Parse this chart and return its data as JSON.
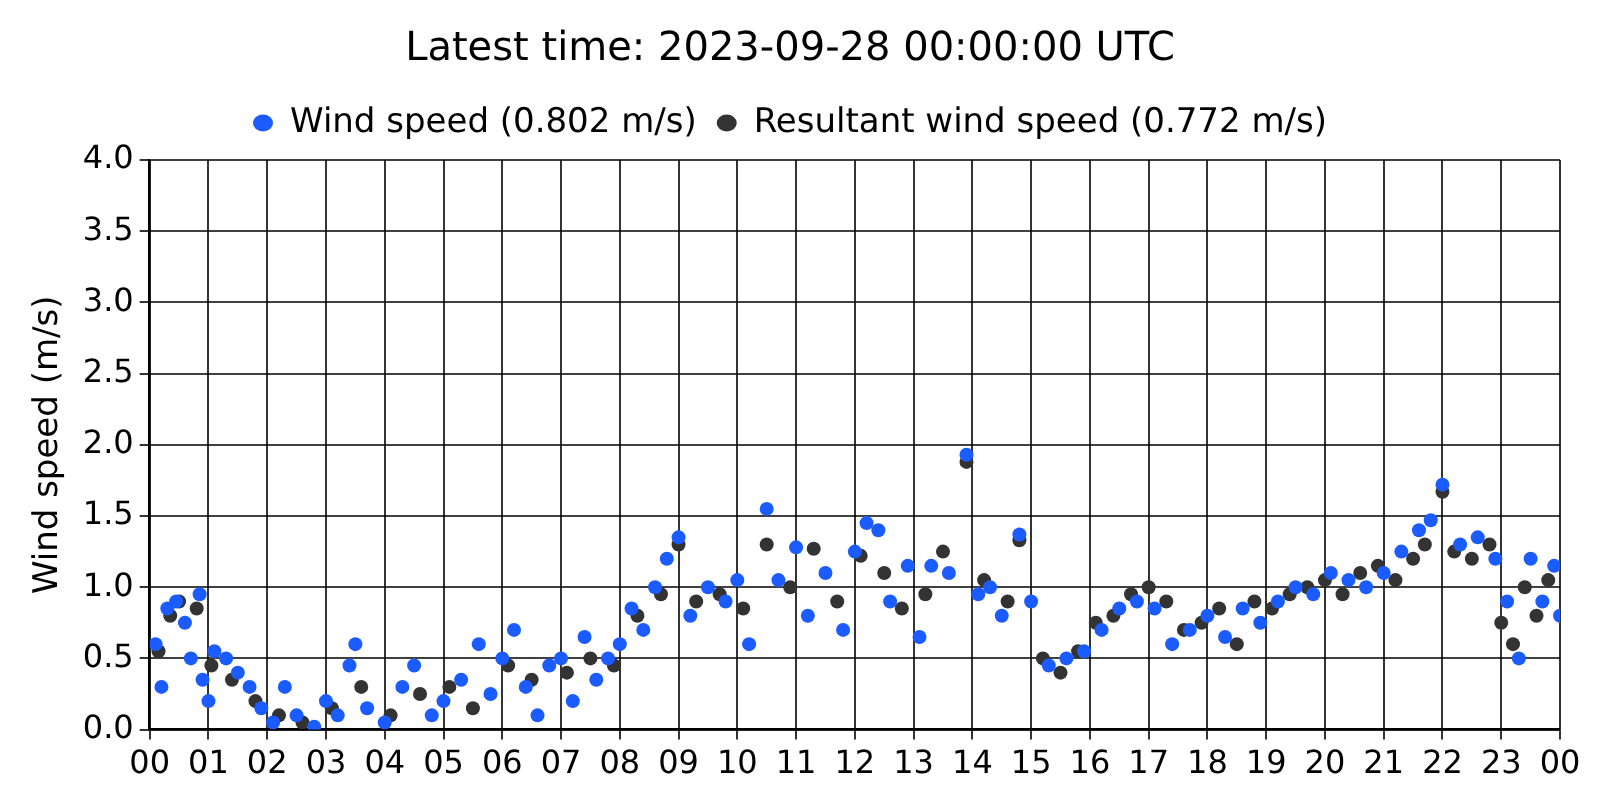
{
  "chart_data": {
    "type": "scatter",
    "title": "Latest time: 2023-09-28 00:00:00 UTC",
    "ylabel": "Wind speed (m/s)",
    "xlim": [
      0,
      24
    ],
    "xticks": [
      {
        "value": 0,
        "label": "00"
      },
      {
        "value": 1,
        "label": "01"
      },
      {
        "value": 2,
        "label": "02"
      },
      {
        "value": 3,
        "label": "03"
      },
      {
        "value": 4,
        "label": "04"
      },
      {
        "value": 5,
        "label": "05"
      },
      {
        "value": 6,
        "label": "06"
      },
      {
        "value": 7,
        "label": "07"
      },
      {
        "value": 8,
        "label": "08"
      },
      {
        "value": 9,
        "label": "09"
      },
      {
        "value": 10,
        "label": "10"
      },
      {
        "value": 11,
        "label": "11"
      },
      {
        "value": 12,
        "label": "12"
      },
      {
        "value": 13,
        "label": "13"
      },
      {
        "value": 14,
        "label": "14"
      },
      {
        "value": 15,
        "label": "15"
      },
      {
        "value": 16,
        "label": "16"
      },
      {
        "value": 17,
        "label": "17"
      },
      {
        "value": 18,
        "label": "18"
      },
      {
        "value": 19,
        "label": "19"
      },
      {
        "value": 20,
        "label": "20"
      },
      {
        "value": 21,
        "label": "21"
      },
      {
        "value": 22,
        "label": "22"
      },
      {
        "value": 23,
        "label": "23"
      },
      {
        "value": 24,
        "label": "00"
      }
    ],
    "ylim": [
      0,
      4
    ],
    "yticks": [
      {
        "value": 0,
        "label": "0.0"
      },
      {
        "value": 0.5,
        "label": "0.5"
      },
      {
        "value": 1,
        "label": "1.0"
      },
      {
        "value": 1.5,
        "label": "1.5"
      },
      {
        "value": 2,
        "label": "2.0"
      },
      {
        "value": 2.5,
        "label": "2.5"
      },
      {
        "value": 3,
        "label": "3.0"
      },
      {
        "value": 3.5,
        "label": "3.5"
      },
      {
        "value": 4,
        "label": "4.0"
      }
    ],
    "grid": true,
    "legend": "top",
    "marker": "circle",
    "series": [
      {
        "name": "Wind speed (0.802 m/s)",
        "color": "#1a5cff",
        "x": [
          0.1,
          0.2,
          0.3,
          0.45,
          0.6,
          0.7,
          0.85,
          0.9,
          1.0,
          1.1,
          1.3,
          1.5,
          1.7,
          1.9,
          2.1,
          2.3,
          2.5,
          2.8,
          3.0,
          3.2,
          3.4,
          3.5,
          3.7,
          4.0,
          4.3,
          4.5,
          4.8,
          5.0,
          5.3,
          5.6,
          5.8,
          6.0,
          6.2,
          6.4,
          6.6,
          6.8,
          7.0,
          7.2,
          7.4,
          7.6,
          7.8,
          8.0,
          8.2,
          8.4,
          8.6,
          8.8,
          9.0,
          9.2,
          9.5,
          9.8,
          10.0,
          10.2,
          10.5,
          10.7,
          11.0,
          11.2,
          11.5,
          11.8,
          12.0,
          12.2,
          12.4,
          12.6,
          12.9,
          13.1,
          13.3,
          13.6,
          13.9,
          14.1,
          14.3,
          14.5,
          14.8,
          15.0,
          15.3,
          15.6,
          15.9,
          16.2,
          16.5,
          16.8,
          17.1,
          17.4,
          17.7,
          18.0,
          18.3,
          18.6,
          18.9,
          19.2,
          19.5,
          19.8,
          20.1,
          20.4,
          20.7,
          21.0,
          21.3,
          21.6,
          21.8,
          22.0,
          22.3,
          22.6,
          22.9,
          23.1,
          23.3,
          23.5,
          23.7,
          23.9,
          24.0
        ],
        "values": [
          0.6,
          0.3,
          0.85,
          0.9,
          0.75,
          0.5,
          0.95,
          0.35,
          0.2,
          0.55,
          0.5,
          0.4,
          0.3,
          0.15,
          0.05,
          0.3,
          0.1,
          0.02,
          0.2,
          0.1,
          0.45,
          0.6,
          0.15,
          0.05,
          0.3,
          0.45,
          0.1,
          0.2,
          0.35,
          0.6,
          0.25,
          0.5,
          0.7,
          0.3,
          0.1,
          0.45,
          0.5,
          0.2,
          0.65,
          0.35,
          0.5,
          0.6,
          0.85,
          0.7,
          1.0,
          1.2,
          1.35,
          0.8,
          1.0,
          0.9,
          1.05,
          0.6,
          1.55,
          1.05,
          1.28,
          0.8,
          1.1,
          0.7,
          1.25,
          1.45,
          1.4,
          0.9,
          1.15,
          0.65,
          1.15,
          1.1,
          1.93,
          0.95,
          1.0,
          0.8,
          1.37,
          0.9,
          0.45,
          0.5,
          0.55,
          0.7,
          0.85,
          0.9,
          0.85,
          0.6,
          0.7,
          0.8,
          0.65,
          0.85,
          0.75,
          0.9,
          1.0,
          0.95,
          1.1,
          1.05,
          1.0,
          1.1,
          1.25,
          1.4,
          1.47,
          1.72,
          1.3,
          1.35,
          1.2,
          0.9,
          0.5,
          1.2,
          0.9,
          1.15,
          0.8
        ]
      },
      {
        "name": "Resultant wind speed (0.772 m/s)",
        "color": "#333333",
        "x": [
          0.15,
          0.35,
          0.5,
          0.8,
          1.05,
          1.4,
          1.8,
          2.2,
          2.6,
          3.1,
          3.6,
          4.1,
          4.6,
          5.1,
          5.5,
          6.1,
          6.5,
          7.1,
          7.5,
          7.9,
          8.3,
          8.7,
          9.0,
          9.3,
          9.7,
          10.1,
          10.5,
          10.9,
          11.3,
          11.7,
          12.1,
          12.5,
          12.8,
          13.2,
          13.5,
          13.9,
          14.2,
          14.6,
          14.8,
          15.2,
          15.5,
          15.8,
          16.1,
          16.4,
          16.7,
          17.0,
          17.3,
          17.6,
          17.9,
          18.2,
          18.5,
          18.8,
          19.1,
          19.4,
          19.7,
          20.0,
          20.3,
          20.6,
          20.9,
          21.2,
          21.5,
          21.7,
          22.0,
          22.2,
          22.5,
          22.8,
          23.0,
          23.2,
          23.4,
          23.6,
          23.8
        ],
        "values": [
          0.55,
          0.8,
          0.9,
          0.85,
          0.45,
          0.35,
          0.2,
          0.1,
          0.05,
          0.15,
          0.3,
          0.1,
          0.25,
          0.3,
          0.15,
          0.45,
          0.35,
          0.4,
          0.5,
          0.45,
          0.8,
          0.95,
          1.3,
          0.9,
          0.95,
          0.85,
          1.3,
          1.0,
          1.27,
          0.9,
          1.22,
          1.1,
          0.85,
          0.95,
          1.25,
          1.88,
          1.05,
          0.9,
          1.33,
          0.5,
          0.4,
          0.55,
          0.75,
          0.8,
          0.95,
          1.0,
          0.9,
          0.7,
          0.75,
          0.85,
          0.6,
          0.9,
          0.85,
          0.95,
          1.0,
          1.05,
          0.95,
          1.1,
          1.15,
          1.05,
          1.2,
          1.3,
          1.67,
          1.25,
          1.2,
          1.3,
          0.75,
          0.6,
          1.0,
          0.8,
          1.05
        ]
      }
    ]
  }
}
